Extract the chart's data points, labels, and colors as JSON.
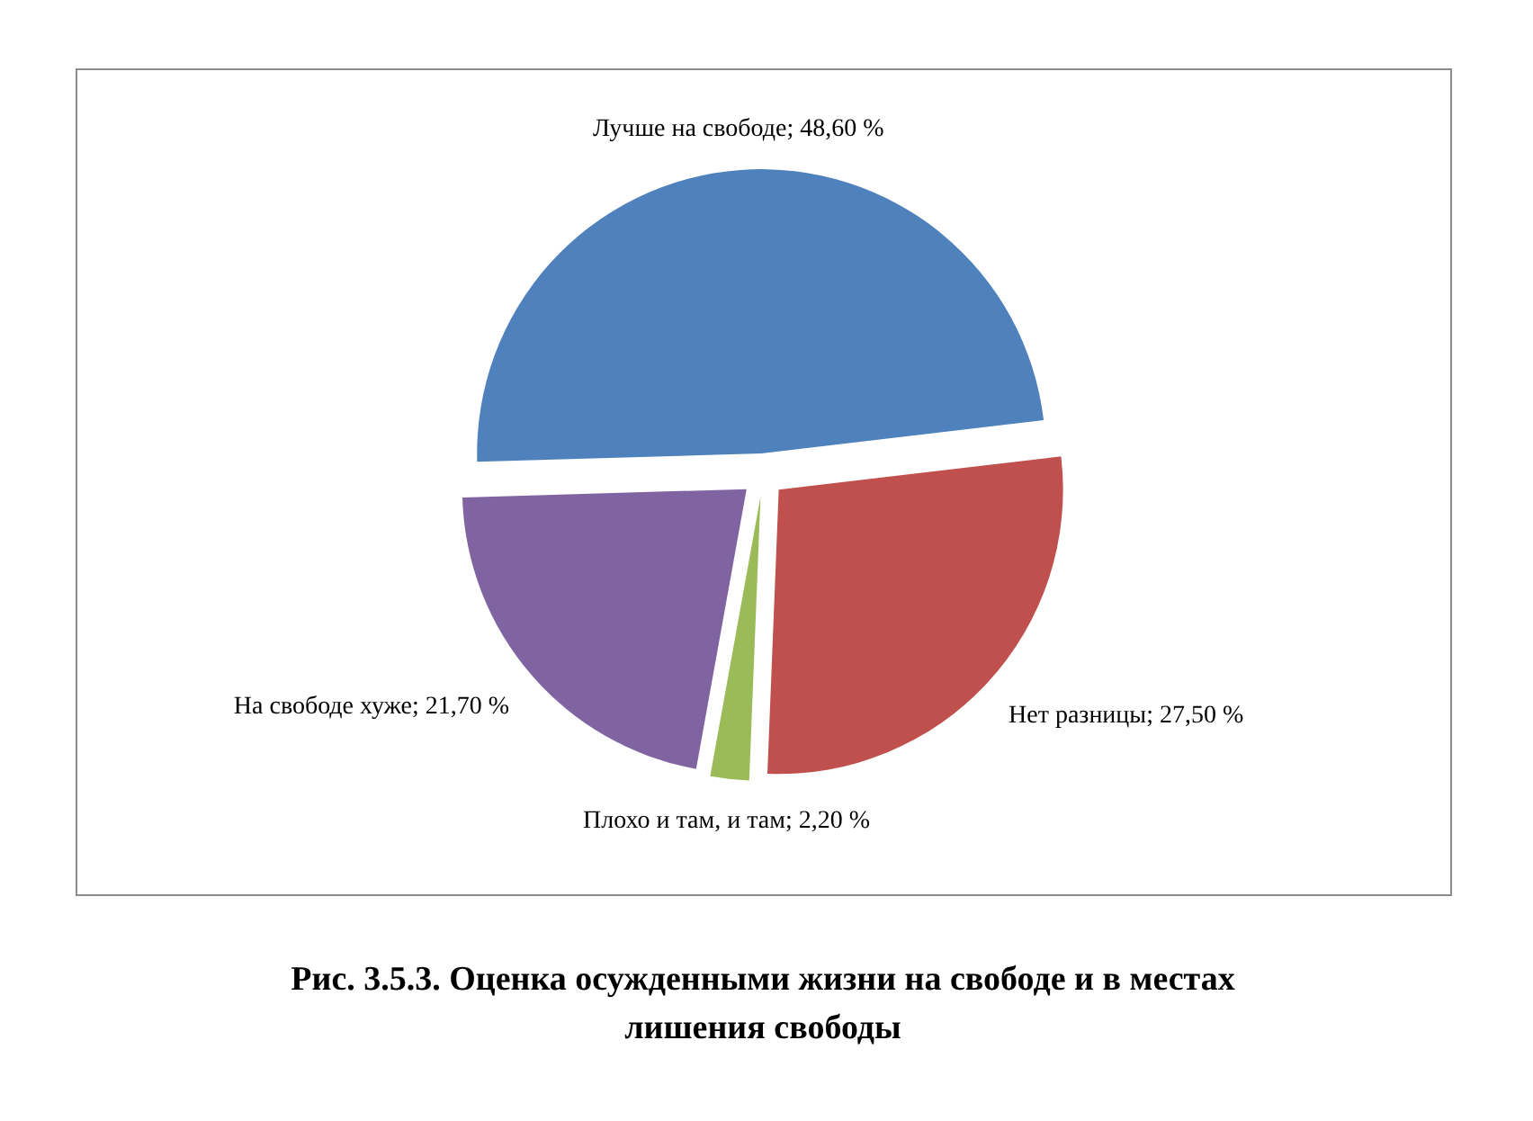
{
  "chart_data": {
    "type": "pie",
    "title": "Рис. 3.5.3. Оценка осужденными жизни на свободе и в местах лишения свободы",
    "categories": [
      "Лучше на свободе",
      "Нет разницы",
      "Плохо и там, и там",
      "На свободе хуже"
    ],
    "values": [
      48.6,
      27.5,
      2.2,
      21.7
    ],
    "value_labels": [
      "48,60 %",
      "27,50 %",
      "2,20 %",
      "21,70 %"
    ],
    "colors": [
      "#4f81bd",
      "#c0504d",
      "#9bbb59",
      "#8064a2"
    ]
  }
}
